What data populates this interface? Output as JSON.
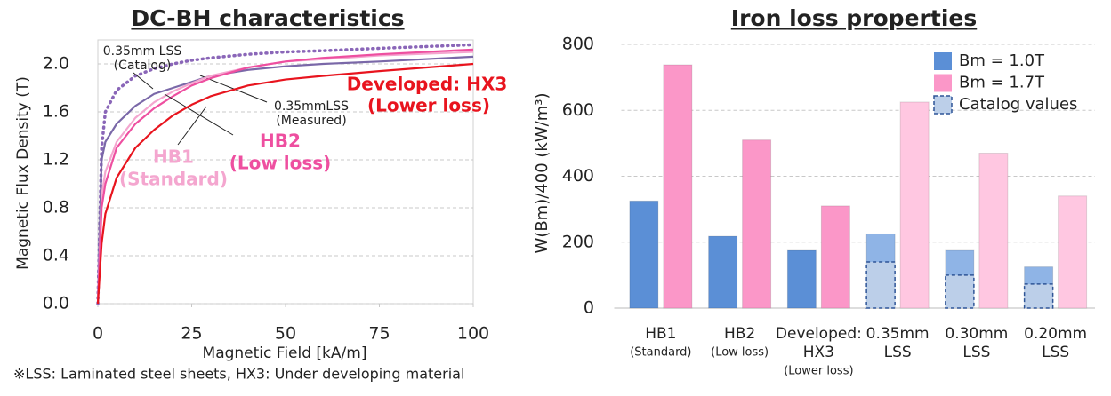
{
  "chart_data": [
    {
      "type": "line",
      "title": "DC-BH characteristics",
      "xlabel": "Magnetic Field [kA/m]",
      "ylabel": "Magnetic Flux Density (T)",
      "xlim": [
        0,
        100
      ],
      "xticks": [
        0,
        25,
        50,
        75,
        100
      ],
      "ylim": [
        0,
        2.2
      ],
      "yticks": [
        {
          "value": 0,
          "label": "0.0"
        },
        0.4,
        0.8,
        1.2,
        1.6,
        {
          "value": 2,
          "label": "2.0"
        }
      ],
      "grid": true,
      "x": [
        0,
        1,
        2,
        5,
        10,
        15,
        20,
        25,
        30,
        40,
        50,
        60,
        75,
        100
      ],
      "series": [
        {
          "label": [
            "0.35mm LSS",
            "(Catalog)"
          ],
          "color": "#8a66b8",
          "style": "dotted",
          "values": [
            0,
            1.3,
            1.6,
            1.78,
            1.9,
            1.96,
            2.0,
            2.03,
            2.05,
            2.08,
            2.1,
            2.11,
            2.13,
            2.16
          ]
        },
        {
          "label": [
            "0.35mmLSS",
            "(Measured)"
          ],
          "color": "#7a68a8",
          "style": "solid",
          "values": [
            0,
            1.2,
            1.35,
            1.5,
            1.65,
            1.75,
            1.8,
            1.85,
            1.9,
            1.95,
            1.98,
            2.0,
            2.02,
            2.06
          ]
        },
        {
          "label": [
            "HB1",
            "(Standard)"
          ],
          "color": "#f4a6cf",
          "style": "solid",
          "values": [
            0,
            0.9,
            1.1,
            1.35,
            1.55,
            1.68,
            1.77,
            1.84,
            1.9,
            1.97,
            2.02,
            2.04,
            2.07,
            2.1
          ]
        },
        {
          "label": [
            "HB2",
            "(Low loss)"
          ],
          "color": "#ee4fa0",
          "style": "solid",
          "values": [
            0,
            0.8,
            1.0,
            1.3,
            1.5,
            1.63,
            1.73,
            1.82,
            1.88,
            1.97,
            2.02,
            2.05,
            2.08,
            2.12
          ]
        },
        {
          "label": [
            "Developed: HX3",
            "(Lower loss)"
          ],
          "color": "#e8141e",
          "style": "solid",
          "values": [
            0,
            0.5,
            0.75,
            1.05,
            1.3,
            1.45,
            1.57,
            1.66,
            1.73,
            1.82,
            1.87,
            1.9,
            1.94,
            2.0
          ]
        }
      ]
    },
    {
      "type": "bar",
      "title": "Iron loss properties",
      "ylabel": "W(Bm)/400 (kW/m³)",
      "ylim": [
        0,
        800
      ],
      "yticks": [
        0,
        200,
        400,
        600,
        800
      ],
      "grid": true,
      "legend": "upper right",
      "categories": [
        {
          "lines": [
            "HB1"
          ],
          "note": "(Standard)"
        },
        {
          "lines": [
            "HB2"
          ],
          "note": "(Low loss)"
        },
        {
          "lines": [
            "Developed:",
            "HX3"
          ],
          "note": "(Lower loss)"
        },
        {
          "lines": [
            "0.35mm",
            "LSS"
          ]
        },
        {
          "lines": [
            "0.30mm",
            "LSS"
          ]
        },
        {
          "lines": [
            "0.20mm",
            "LSS"
          ]
        }
      ],
      "series": [
        {
          "name": "Bm = 1.0T",
          "color": "#5b8fd6",
          "colors": [
            "#5b8fd6",
            "#5b8fd6",
            "#5b8fd6",
            "#8fb4e6",
            "#8fb4e6",
            "#8fb4e6"
          ],
          "values": [
            325,
            218,
            175,
            225,
            175,
            125
          ]
        },
        {
          "name": "Bm = 1.7T",
          "color": "#fb97c8",
          "colors": [
            "#fb97c8",
            "#fb97c8",
            "#fb97c8",
            "#ffc7e1",
            "#ffc7e1",
            "#ffc7e1"
          ],
          "values": [
            738,
            510,
            310,
            625,
            470,
            340
          ]
        },
        {
          "name": "Catalog values",
          "color": "#bccfe9",
          "style": "dashed",
          "overlay": true,
          "values": [
            null,
            null,
            null,
            140,
            100,
            73
          ]
        }
      ]
    }
  ],
  "note": "※LSS: Laminated steel sheets,  HX3: Under developing material"
}
